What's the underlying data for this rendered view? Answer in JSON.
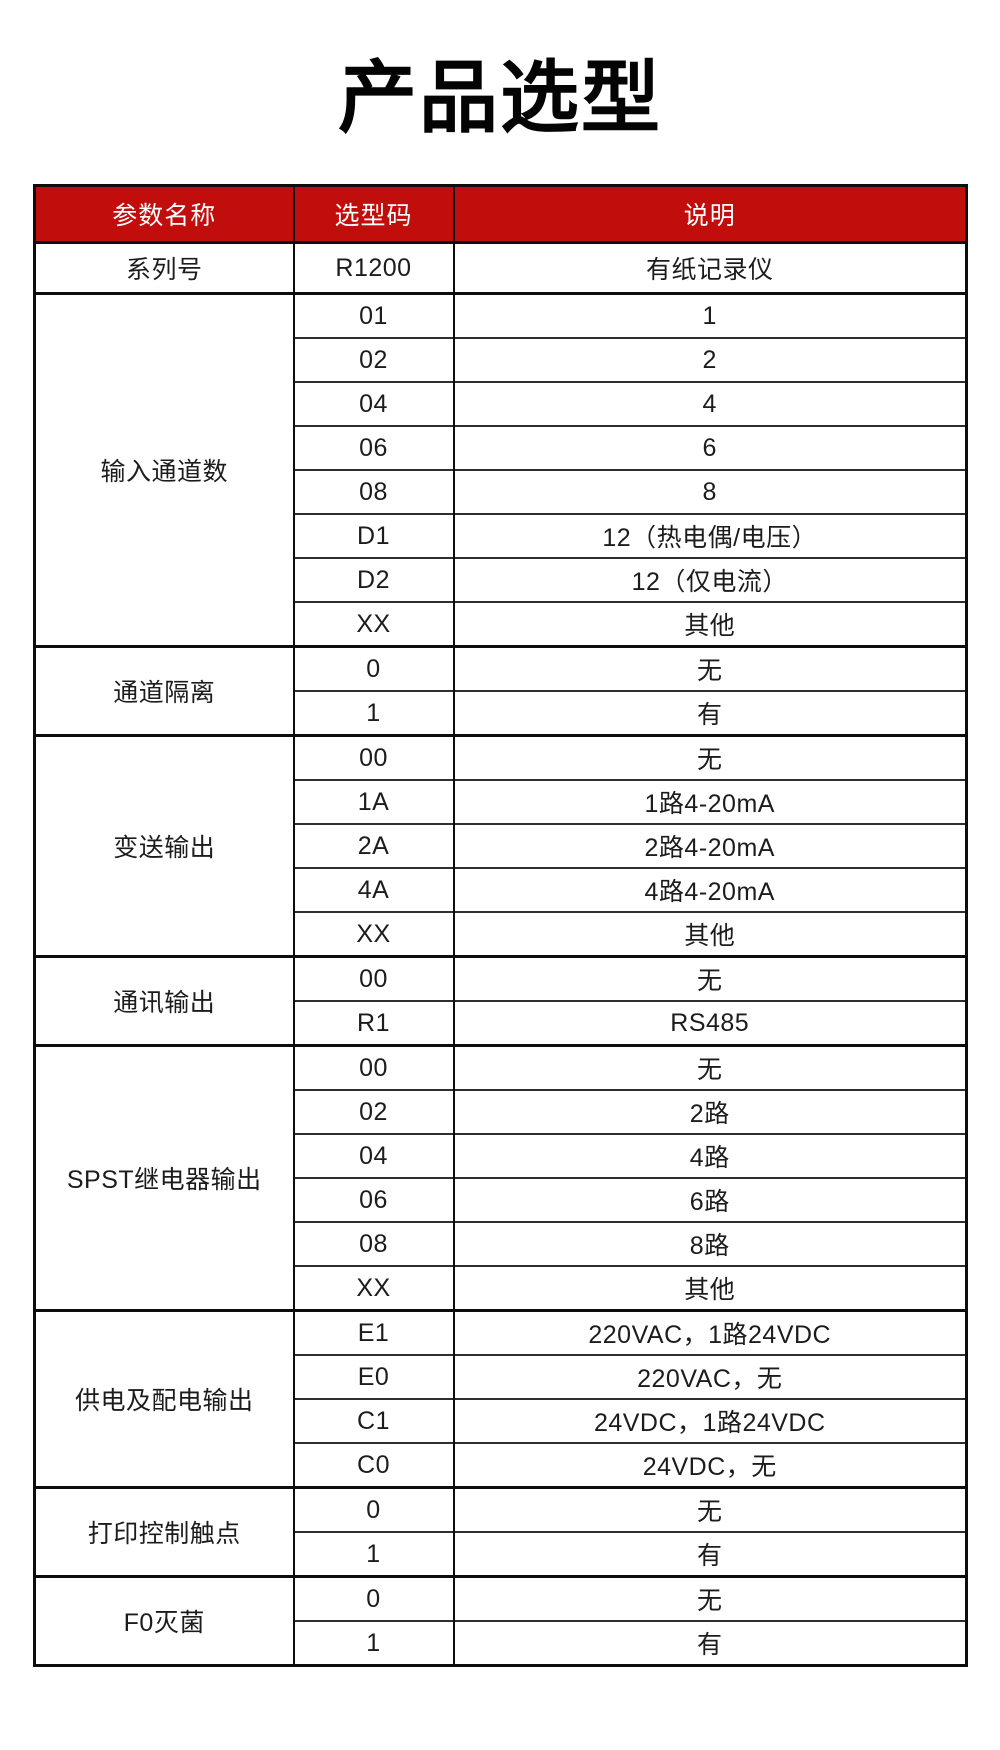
{
  "page": {
    "title": "产品选型",
    "background": "#ffffff"
  },
  "colors": {
    "header_bg": "#c20d0d",
    "header_text": "#ffffff",
    "body_text": "#1c1c1c",
    "border_dark": "#0d0d0d",
    "border_inner": "#2e2e2e",
    "title_color": "#040404"
  },
  "table": {
    "headers": [
      "参数名称",
      "选型码",
      "说明"
    ],
    "groups": [
      {
        "name": "系列号",
        "rows": [
          [
            "R1200",
            "有纸记录仪"
          ]
        ]
      },
      {
        "name": "输入通道数",
        "rows": [
          [
            "01",
            "1"
          ],
          [
            "02",
            "2"
          ],
          [
            "04",
            "4"
          ],
          [
            "06",
            "6"
          ],
          [
            "08",
            "8"
          ],
          [
            "D1",
            "12（热电偶/电压）"
          ],
          [
            "D2",
            "12（仅电流）"
          ],
          [
            "XX",
            "其他"
          ]
        ]
      },
      {
        "name": "通道隔离",
        "rows": [
          [
            "0",
            "无"
          ],
          [
            "1",
            "有"
          ]
        ]
      },
      {
        "name": "变送输出",
        "rows": [
          [
            "00",
            "无"
          ],
          [
            "1A",
            "1路4-20mA"
          ],
          [
            "2A",
            "2路4-20mA"
          ],
          [
            "4A",
            "4路4-20mA"
          ],
          [
            "XX",
            "其他"
          ]
        ]
      },
      {
        "name": "通讯输出",
        "rows": [
          [
            "00",
            "无"
          ],
          [
            "R1",
            "RS485"
          ]
        ]
      },
      {
        "name": "SPST继电器输出",
        "rows": [
          [
            "00",
            "无"
          ],
          [
            "02",
            "2路"
          ],
          [
            "04",
            "4路"
          ],
          [
            "06",
            "6路"
          ],
          [
            "08",
            "8路"
          ],
          [
            "XX",
            "其他"
          ]
        ]
      },
      {
        "name": "供电及配电输出",
        "rows": [
          [
            "E1",
            "220VAC，1路24VDC"
          ],
          [
            "E0",
            "220VAC，无"
          ],
          [
            "C1",
            "24VDC，1路24VDC"
          ],
          [
            "C0",
            "24VDC，无"
          ]
        ]
      },
      {
        "name": "打印控制触点",
        "rows": [
          [
            "0",
            "无"
          ],
          [
            "1",
            "有"
          ]
        ]
      },
      {
        "name": "F0灭菌",
        "rows": [
          [
            "0",
            "无"
          ],
          [
            "1",
            "有"
          ]
        ]
      }
    ]
  }
}
